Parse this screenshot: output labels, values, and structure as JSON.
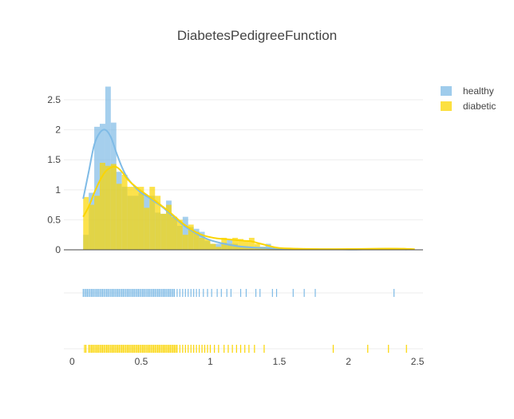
{
  "chart_data": {
    "type": "histogram",
    "title": "DiabetesPedigreeFunction",
    "x_ticks": [
      "0",
      "0.5",
      "1",
      "1.5",
      "2",
      "2.5"
    ],
    "x_tick_values": [
      0,
      0.5,
      1,
      1.5,
      2,
      2.5
    ],
    "y_ticks": [
      "0",
      "0.5",
      "1",
      "1.5",
      "2",
      "2.5"
    ],
    "y_tick_values": [
      0,
      0.5,
      1,
      1.5,
      2,
      2.5
    ],
    "xlim": [
      -0.06,
      2.54
    ],
    "ylim": [
      0,
      2.7
    ],
    "legend_position": "top-right",
    "series": [
      {
        "name": "healthy",
        "color": "#7fbbe6",
        "bins_x0": [
          0.08,
          0.12,
          0.16,
          0.2,
          0.24,
          0.28,
          0.32,
          0.36,
          0.4,
          0.44,
          0.48,
          0.52,
          0.56,
          0.6,
          0.64,
          0.68,
          0.72,
          0.76,
          0.8,
          0.84,
          0.88,
          0.92,
          0.96,
          1.0,
          1.04,
          1.08,
          1.12,
          1.16,
          1.2,
          1.24,
          1.28,
          1.32,
          1.36,
          1.4,
          1.44,
          1.48
        ],
        "bin_width": 0.04,
        "density": [
          0.25,
          0.95,
          2.05,
          2.1,
          2.72,
          2.12,
          1.3,
          1.05,
          0.9,
          0.9,
          0.95,
          0.9,
          0.9,
          0.62,
          0.6,
          0.82,
          0.55,
          0.4,
          0.55,
          0.38,
          0.35,
          0.3,
          0.15,
          0.1,
          0.1,
          0.12,
          0.16,
          0.1,
          0.06,
          0.05,
          0.04,
          0.04,
          0.05,
          0.1,
          0.03,
          0.02
        ],
        "kde_x": [
          0.08,
          0.12,
          0.16,
          0.2,
          0.24,
          0.28,
          0.32,
          0.36,
          0.4,
          0.45,
          0.5,
          0.55,
          0.6,
          0.65,
          0.7,
          0.75,
          0.8,
          0.85,
          0.9,
          0.95,
          1.0,
          1.1,
          1.2,
          1.3,
          1.4,
          1.5,
          1.7,
          1.9,
          2.1,
          2.3,
          2.42
        ],
        "kde_y": [
          0.85,
          1.3,
          1.75,
          1.95,
          2.0,
          1.88,
          1.62,
          1.38,
          1.2,
          1.06,
          0.95,
          0.88,
          0.8,
          0.72,
          0.62,
          0.52,
          0.42,
          0.34,
          0.27,
          0.21,
          0.16,
          0.1,
          0.06,
          0.04,
          0.03,
          0.02,
          0.012,
          0.008,
          0.006,
          0.02,
          0.005
        ],
        "rug": [
          0.08,
          0.09,
          0.1,
          0.11,
          0.12,
          0.13,
          0.14,
          0.15,
          0.16,
          0.17,
          0.18,
          0.19,
          0.2,
          0.21,
          0.22,
          0.23,
          0.24,
          0.25,
          0.26,
          0.27,
          0.28,
          0.29,
          0.3,
          0.31,
          0.32,
          0.33,
          0.34,
          0.35,
          0.36,
          0.37,
          0.38,
          0.39,
          0.4,
          0.41,
          0.42,
          0.43,
          0.44,
          0.45,
          0.46,
          0.47,
          0.48,
          0.49,
          0.5,
          0.51,
          0.52,
          0.53,
          0.54,
          0.55,
          0.56,
          0.57,
          0.58,
          0.59,
          0.6,
          0.61,
          0.62,
          0.63,
          0.64,
          0.65,
          0.66,
          0.67,
          0.68,
          0.69,
          0.7,
          0.71,
          0.72,
          0.73,
          0.74,
          0.76,
          0.78,
          0.8,
          0.82,
          0.84,
          0.86,
          0.88,
          0.9,
          0.92,
          0.95,
          0.98,
          1.01,
          1.05,
          1.08,
          1.12,
          1.15,
          1.22,
          1.26,
          1.33,
          1.36,
          1.45,
          1.48,
          1.6,
          1.68,
          1.76,
          2.33
        ]
      },
      {
        "name": "diabetic",
        "color": "#fbd500",
        "bins_x0": [
          0.08,
          0.12,
          0.16,
          0.2,
          0.24,
          0.28,
          0.32,
          0.36,
          0.4,
          0.44,
          0.48,
          0.52,
          0.56,
          0.6,
          0.64,
          0.68,
          0.72,
          0.76,
          0.8,
          0.84,
          0.88,
          0.92,
          0.96,
          1.0,
          1.04,
          1.08,
          1.12,
          1.16,
          1.2,
          1.24,
          1.28,
          1.32,
          1.36,
          1.4,
          1.44,
          1.48,
          1.52,
          1.56,
          1.6,
          1.64,
          1.68,
          1.72,
          1.76,
          1.8,
          1.84,
          1.88,
          1.92,
          1.96,
          2.0,
          2.04,
          2.08,
          2.12,
          2.16,
          2.2,
          2.24,
          2.28,
          2.32,
          2.36,
          2.4,
          2.44
        ],
        "bin_width": 0.04,
        "density": [
          0.88,
          0.75,
          0.9,
          1.45,
          1.4,
          1.43,
          1.1,
          1.25,
          1.05,
          1.05,
          1.05,
          0.7,
          1.05,
          0.9,
          0.6,
          0.75,
          0.55,
          0.5,
          0.25,
          0.42,
          0.3,
          0.2,
          0.18,
          0.1,
          0.05,
          0.2,
          0.1,
          0.2,
          0.18,
          0.15,
          0.2,
          0.1,
          0.05,
          0.03,
          0.02,
          0.02,
          0.01,
          0.01,
          0.02,
          0.01,
          0.01,
          0.01,
          0.01,
          0.02,
          0.02,
          0.02,
          0.01,
          0.01,
          0.01,
          0.01,
          0.01,
          0.02,
          0.02,
          0.01,
          0.01,
          0.02,
          0.02,
          0.02,
          0.02,
          0.02
        ],
        "kde_x": [
          0.08,
          0.12,
          0.16,
          0.2,
          0.24,
          0.28,
          0.32,
          0.36,
          0.4,
          0.45,
          0.5,
          0.55,
          0.6,
          0.65,
          0.7,
          0.75,
          0.8,
          0.85,
          0.9,
          0.95,
          1.0,
          1.05,
          1.1,
          1.15,
          1.2,
          1.25,
          1.3,
          1.35,
          1.4,
          1.45,
          1.5,
          1.6,
          1.7,
          1.8,
          1.9,
          2.0,
          2.1,
          2.2,
          2.3,
          2.4,
          2.48
        ],
        "kde_y": [
          0.55,
          0.72,
          0.95,
          1.15,
          1.3,
          1.37,
          1.38,
          1.3,
          1.18,
          1.07,
          0.98,
          0.9,
          0.82,
          0.73,
          0.64,
          0.54,
          0.44,
          0.36,
          0.29,
          0.24,
          0.21,
          0.19,
          0.18,
          0.17,
          0.16,
          0.15,
          0.14,
          0.11,
          0.08,
          0.05,
          0.03,
          0.02,
          0.015,
          0.012,
          0.012,
          0.013,
          0.015,
          0.018,
          0.02,
          0.018,
          0.01
        ],
        "rug": [
          0.09,
          0.1,
          0.12,
          0.13,
          0.14,
          0.15,
          0.16,
          0.17,
          0.18,
          0.19,
          0.2,
          0.21,
          0.22,
          0.23,
          0.24,
          0.25,
          0.26,
          0.27,
          0.28,
          0.29,
          0.3,
          0.31,
          0.32,
          0.33,
          0.34,
          0.35,
          0.36,
          0.37,
          0.38,
          0.39,
          0.4,
          0.41,
          0.42,
          0.43,
          0.44,
          0.45,
          0.46,
          0.47,
          0.48,
          0.49,
          0.5,
          0.51,
          0.52,
          0.53,
          0.54,
          0.55,
          0.56,
          0.57,
          0.58,
          0.59,
          0.6,
          0.61,
          0.62,
          0.63,
          0.64,
          0.65,
          0.66,
          0.67,
          0.68,
          0.69,
          0.7,
          0.71,
          0.72,
          0.73,
          0.74,
          0.75,
          0.76,
          0.78,
          0.8,
          0.82,
          0.84,
          0.86,
          0.88,
          0.9,
          0.92,
          0.94,
          0.96,
          0.98,
          1.0,
          1.03,
          1.06,
          1.1,
          1.13,
          1.16,
          1.19,
          1.22,
          1.25,
          1.28,
          1.32,
          1.39,
          1.89,
          2.14,
          2.29,
          2.42
        ]
      }
    ]
  }
}
